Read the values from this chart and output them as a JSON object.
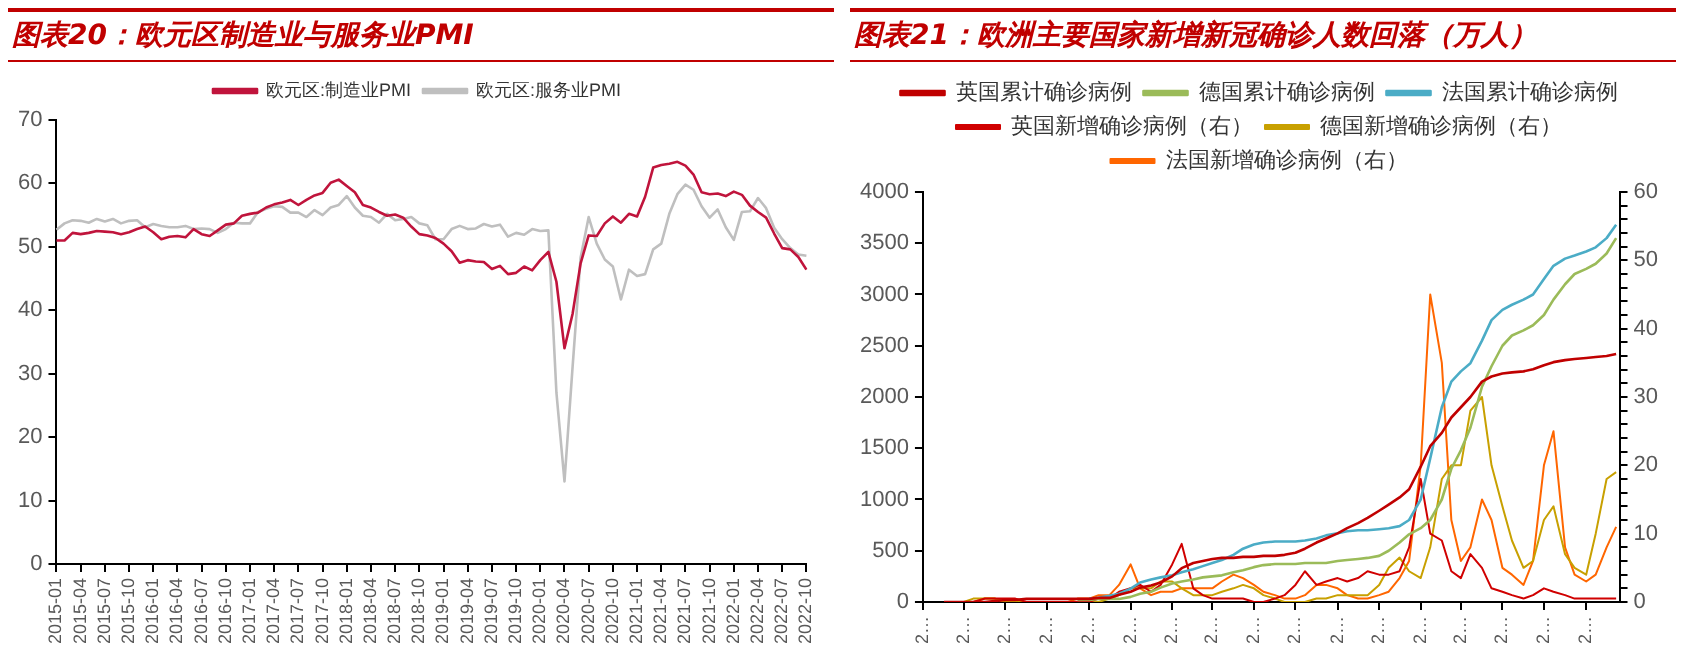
{
  "chart_data": [
    {
      "type": "line",
      "title": "图表20：欧元区制造业与服务业PMI",
      "legend": "top",
      "grid": false,
      "categories": [
        "2015-01",
        null,
        null,
        "2015-04",
        null,
        null,
        "2015-07",
        null,
        null,
        "2015-10",
        null,
        null,
        "2016-01",
        null,
        null,
        "2016-04",
        null,
        null,
        "2016-07",
        null,
        null,
        "2016-10",
        null,
        null,
        "2017-01",
        null,
        null,
        "2017-04",
        null,
        null,
        "2017-07",
        null,
        null,
        "2017-10",
        null,
        null,
        "2018-01",
        null,
        null,
        "2018-04",
        null,
        null,
        "2018-07",
        null,
        null,
        "2018-10",
        null,
        null,
        "2019-01",
        null,
        null,
        "2019-04",
        null,
        null,
        "2019-07",
        null,
        null,
        "2019-10",
        null,
        null,
        "2020-01",
        null,
        null,
        "2020-04",
        null,
        null,
        "2020-07",
        null,
        null,
        "2020-10",
        null,
        null,
        "2021-01",
        null,
        null,
        "2021-04",
        null,
        null,
        "2021-07",
        null,
        null,
        "2021-10",
        null,
        null,
        "2022-01",
        null,
        null,
        "2022-04",
        null,
        null,
        "2022-07",
        null,
        null,
        "2022-10"
      ],
      "ylim": [
        0,
        70
      ],
      "yticks": [
        0,
        10,
        20,
        30,
        40,
        50,
        60,
        70
      ],
      "series": [
        {
          "name": "欧元区:制造业PMI",
          "color": "#c0143c",
          "values": [
            51.0,
            51.0,
            52.2,
            52.0,
            52.2,
            52.5,
            52.4,
            52.3,
            52.0,
            52.3,
            52.8,
            53.2,
            52.3,
            51.2,
            51.6,
            51.7,
            51.5,
            52.8,
            52.0,
            51.7,
            52.6,
            53.5,
            53.7,
            54.9,
            55.2,
            55.4,
            56.2,
            56.7,
            57.0,
            57.4,
            56.6,
            57.4,
            58.1,
            58.5,
            60.1,
            60.6,
            59.6,
            58.6,
            56.6,
            56.2,
            55.5,
            54.9,
            55.1,
            54.6,
            53.2,
            52.0,
            51.8,
            51.4,
            50.5,
            49.3,
            47.5,
            47.9,
            47.7,
            47.6,
            46.5,
            47.0,
            45.7,
            45.9,
            46.9,
            46.3,
            47.9,
            49.2,
            44.5,
            34,
            39.4,
            47.4,
            51.8,
            51.7,
            53.7,
            54.8,
            53.8,
            55.2,
            54.8,
            57.9,
            62.5,
            62.9,
            63.1,
            63.4,
            62.8,
            61.4,
            58.6,
            58.3,
            58.4,
            58.0,
            58.7,
            58.2,
            56.5,
            55.5,
            54.6,
            52.1,
            49.8,
            49.6,
            48.4,
            46.4
          ]
        },
        {
          "name": "欧元区:服务业PMI",
          "color": "#bfbfbf",
          "values": [
            52.7,
            53.7,
            54.2,
            54.1,
            53.8,
            54.4,
            54.0,
            54.4,
            53.7,
            54.1,
            54.2,
            53.1,
            53.6,
            53.3,
            53.1,
            53.1,
            53.3,
            52.8,
            52.9,
            52.8,
            52.2,
            52.8,
            53.8,
            53.7,
            53.7,
            55.5,
            56.0,
            56.4,
            56.3,
            55.4,
            55.4,
            54.7,
            55.8,
            55.0,
            56.2,
            56.6,
            58.0,
            56.2,
            54.9,
            54.7,
            53.8,
            55.2,
            54.2,
            54.4,
            54.7,
            53.7,
            53.4,
            51.2,
            51.2,
            52.8,
            53.3,
            52.8,
            52.9,
            53.6,
            53.2,
            53.5,
            51.6,
            52.2,
            51.9,
            52.8,
            52.5,
            52.6,
            27,
            13,
            31,
            48.3,
            54.7,
            50.5,
            48.0,
            46.9,
            41.7,
            46.4,
            45.4,
            45.7,
            49.6,
            50.5,
            55.2,
            58.3,
            59.8,
            59.0,
            56.4,
            54.6,
            55.9,
            53.1,
            51.1,
            55.5,
            55.6,
            57.7,
            56.1,
            53.0,
            51.2,
            49.8,
            48.8,
            48.6
          ]
        }
      ]
    },
    {
      "type": "line",
      "title": "图表21：欧洲主要国家新增新冠确诊人数回落（万人）",
      "legend": "top",
      "grid": false,
      "x": [
        "2020-02-01",
        "2020-02-15",
        "2020-03-01",
        "2020-03-15",
        "2020-04-01",
        "2020-04-15",
        "2020-05-01",
        "2020-05-15",
        "2020-06-01",
        "2020-06-15",
        "2020-07-01",
        "2020-07-15",
        "2020-08-01",
        "2020-08-15",
        "2020-09-01",
        "2020-09-15",
        "2020-10-01",
        "2020-10-15",
        "2020-11-01",
        "2020-11-15",
        "2020-12-01",
        "2020-12-15",
        "2021-01-01",
        "2021-01-15",
        "2021-02-01",
        "2021-02-15",
        "2021-03-01",
        "2021-03-15",
        "2021-04-01",
        "2021-04-15",
        "2021-05-01",
        "2021-05-15",
        "2021-06-01",
        "2021-06-15",
        "2021-07-01",
        "2021-07-15",
        "2021-08-01",
        "2021-08-15",
        "2021-09-01",
        "2021-09-15",
        "2021-10-01",
        "2021-10-15",
        "2021-11-01",
        "2021-11-15",
        "2021-12-01",
        "2021-12-15",
        "2022-01-01",
        "2022-01-15",
        "2022-02-01",
        "2022-02-15",
        "2022-03-01",
        "2022-03-15",
        "2022-04-01",
        "2022-04-15",
        "2022-05-01",
        "2022-05-15",
        "2022-06-01",
        "2022-06-15",
        "2022-07-01",
        "2022-07-15",
        "2022-08-01",
        "2022-08-15",
        "2022-09-01",
        "2022-09-15",
        "2022-10-01",
        "2022-10-15"
      ],
      "xlim": [
        "2020-01-01",
        "2022-10-20"
      ],
      "xticks": [
        {
          "value": "2020-01-01",
          "label": "2…"
        },
        {
          "value": "2020-03-01",
          "label": "2…"
        },
        {
          "value": "2020-05-01",
          "label": "2…"
        },
        {
          "value": "2020-07-01",
          "label": "2…"
        },
        {
          "value": "2020-09-01",
          "label": "2…"
        },
        {
          "value": "2020-11-01",
          "label": "2…"
        },
        {
          "value": "2021-01-01",
          "label": "2…"
        },
        {
          "value": "2021-03-01",
          "label": "2…"
        },
        {
          "value": "2021-05-01",
          "label": "2…"
        },
        {
          "value": "2021-07-01",
          "label": "2…"
        },
        {
          "value": "2021-09-01",
          "label": "2…"
        },
        {
          "value": "2021-11-01",
          "label": "2…"
        },
        {
          "value": "2022-01-01",
          "label": "2…"
        },
        {
          "value": "2022-03-01",
          "label": "2…"
        },
        {
          "value": "2022-05-01",
          "label": "2…"
        },
        {
          "value": "2022-07-01",
          "label": "2…"
        },
        {
          "value": "2022-09-01",
          "label": "2…"
        }
      ],
      "ylim": [
        0,
        4000
      ],
      "yticks": [
        0,
        500,
        1000,
        1500,
        2000,
        2500,
        3000,
        3500,
        4000
      ],
      "y2lim": [
        0,
        60
      ],
      "y2ticks": [
        0,
        {
          "value": 2,
          "label": null
        },
        {
          "value": 4,
          "label": null
        },
        {
          "value": 6,
          "label": null
        },
        {
          "value": 8,
          "label": null
        },
        10,
        {
          "value": 12,
          "label": null
        },
        {
          "value": 14,
          "label": null
        },
        {
          "value": 16,
          "label": null
        },
        {
          "value": 18,
          "label": null
        },
        20,
        {
          "value": 22,
          "label": null
        },
        {
          "value": 24,
          "label": null
        },
        {
          "value": 26,
          "label": null
        },
        {
          "value": 28,
          "label": null
        },
        30,
        {
          "value": 32,
          "label": null
        },
        {
          "value": 34,
          "label": null
        },
        {
          "value": 36,
          "label": null
        },
        {
          "value": 38,
          "label": null
        },
        40,
        {
          "value": 42,
          "label": null
        },
        {
          "value": 44,
          "label": null
        },
        {
          "value": 46,
          "label": null
        },
        {
          "value": 48,
          "label": null
        },
        50,
        {
          "value": 52,
          "label": null
        },
        {
          "value": 54,
          "label": null
        },
        {
          "value": 56,
          "label": null
        },
        {
          "value": 58,
          "label": null
        },
        60
      ],
      "series": [
        {
          "name": "英国累计确诊病例",
          "color": "#c00000",
          "values": [
            0,
            0,
            0,
            0,
            0,
            10,
            20,
            20,
            30,
            30,
            30,
            30,
            30,
            30,
            30,
            40,
            40,
            70,
            100,
            140,
            160,
            190,
            250,
            330,
            380,
            400,
            420,
            430,
            430,
            440,
            440,
            450,
            450,
            460,
            480,
            520,
            580,
            620,
            670,
            720,
            770,
            820,
            890,
            950,
            1020,
            1100,
            1320,
            1520,
            1650,
            1800,
            1900,
            2000,
            2150,
            2200,
            2230,
            2240,
            2250,
            2270,
            2310,
            2340,
            2360,
            2370,
            2380,
            2390,
            2400,
            2420
          ]
        },
        {
          "name": "德国累计确诊病例",
          "color": "#9bbb59",
          "values": [
            null,
            null,
            null,
            null,
            null,
            null,
            null,
            null,
            null,
            null,
            null,
            null,
            null,
            20,
            20,
            30,
            30,
            30,
            50,
            80,
            100,
            140,
            180,
            200,
            220,
            240,
            250,
            260,
            290,
            310,
            340,
            360,
            370,
            370,
            370,
            380,
            380,
            380,
            400,
            410,
            420,
            430,
            450,
            500,
            580,
            660,
            720,
            800,
            1000,
            1300,
            1480,
            1700,
            2100,
            2300,
            2500,
            2600,
            2650,
            2700,
            2800,
            2950,
            3100,
            3200,
            3250,
            3300,
            3400,
            3550
          ]
        },
        {
          "name": "法国累计确诊病例",
          "color": "#4bacc6",
          "values": [
            null,
            null,
            null,
            null,
            null,
            null,
            null,
            null,
            null,
            null,
            null,
            null,
            null,
            null,
            30,
            40,
            60,
            80,
            130,
            190,
            220,
            240,
            260,
            290,
            320,
            350,
            380,
            410,
            460,
            520,
            560,
            580,
            590,
            590,
            590,
            600,
            620,
            650,
            670,
            690,
            700,
            700,
            710,
            720,
            740,
            800,
            1000,
            1400,
            1900,
            2150,
            2250,
            2330,
            2550,
            2750,
            2850,
            2900,
            2950,
            3000,
            3150,
            3280,
            3350,
            3380,
            3420,
            3460,
            3550,
            3680
          ]
        },
        {
          "name": "英国新增确诊病例（右）",
          "color": "#d00000",
          "axis": "y2",
          "values": [
            0,
            0,
            0,
            0,
            0.5,
            0.5,
            0.5,
            0.5,
            0,
            0,
            0,
            0,
            0,
            0,
            0,
            0.5,
            0.5,
            1.5,
            2,
            2.5,
            1.5,
            2.5,
            5.5,
            8.5,
            2,
            1,
            0.5,
            0.5,
            0.5,
            0.5,
            0,
            0,
            0.5,
            1,
            2.5,
            4.5,
            2.5,
            3,
            3.5,
            3,
            3.5,
            4.5,
            4,
            4,
            4.5,
            8,
            18,
            10,
            9,
            4.5,
            3.5,
            7,
            5,
            2,
            1.5,
            1,
            0.5,
            1,
            2,
            1.5,
            1,
            0.5,
            0.5,
            0.5,
            0.5,
            0.5
          ]
        },
        {
          "name": "德国新增确诊病例（右）",
          "color": "#c8a000",
          "axis": "y2",
          "values": [
            0,
            0,
            0,
            0.5,
            0.5,
            0.5,
            0,
            0,
            0,
            0,
            0,
            0,
            0,
            0,
            0,
            0,
            0.5,
            1,
            2,
            2,
            2,
            3,
            3,
            2,
            1,
            1,
            1,
            1.5,
            2,
            2.5,
            2,
            1,
            0.5,
            0,
            0,
            0,
            0.5,
            0.5,
            1,
            1,
            1,
            1,
            2.5,
            5,
            6.5,
            4.5,
            3.5,
            8,
            18,
            20,
            20,
            28,
            30,
            20,
            14,
            9,
            5,
            6,
            12,
            14,
            7,
            5,
            4,
            10,
            18,
            19
          ]
        },
        {
          "name": "法国新增确诊病例（右）",
          "color": "#ff6600",
          "axis": "y2",
          "values": [
            null,
            null,
            null,
            0,
            0.5,
            0.5,
            0,
            0,
            0,
            0,
            0,
            0,
            0,
            0.5,
            0.5,
            1,
            1,
            2.5,
            5.5,
            2,
            1,
            1.5,
            1.5,
            2,
            2,
            2,
            2,
            3,
            4,
            3.5,
            2.5,
            1.5,
            1,
            0.5,
            0.5,
            1,
            2.5,
            2.5,
            2,
            1,
            0.5,
            0.5,
            1,
            1.5,
            3.5,
            6,
            20,
            45,
            35,
            12,
            6,
            8,
            15,
            12,
            5,
            4,
            2.5,
            6,
            20,
            25,
            8,
            4,
            3,
            4,
            8,
            11
          ]
        }
      ]
    }
  ]
}
